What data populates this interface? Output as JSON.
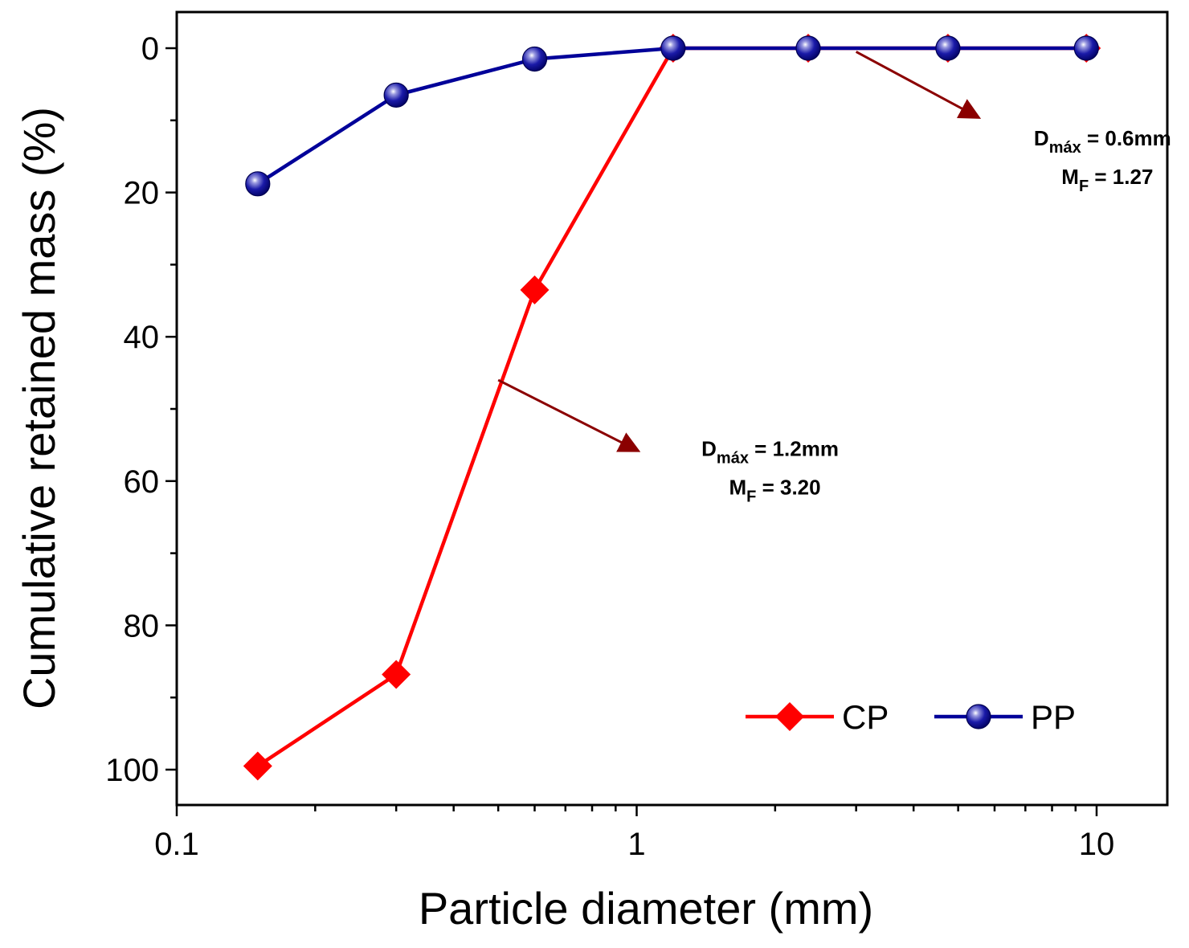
{
  "chart_data": {
    "type": "line",
    "title": "",
    "xlabel": "Particle diameter (mm)",
    "ylabel": "Cumulative retained mass (%)",
    "x_scale": "log",
    "xlim": [
      0.1,
      15
    ],
    "ylim": [
      105,
      -5
    ],
    "y_inverted": true,
    "x_ticks": [
      {
        "value": 0.1,
        "label": "0.1"
      },
      {
        "value": 1,
        "label": "1"
      },
      {
        "value": 10,
        "label": "10"
      }
    ],
    "y_ticks": [
      {
        "value": 0,
        "label": "0"
      },
      {
        "value": 20,
        "label": "20"
      },
      {
        "value": 40,
        "label": "40"
      },
      {
        "value": 60,
        "label": "60"
      },
      {
        "value": 80,
        "label": "80"
      },
      {
        "value": 100,
        "label": "100"
      }
    ],
    "series": [
      {
        "name": "CP",
        "color": "#ff0000",
        "marker": "diamond",
        "x": [
          0.15,
          0.3,
          0.6,
          1.2,
          2.36,
          4.75,
          9.5
        ],
        "y": [
          99.5,
          86.8,
          33.5,
          0,
          0,
          0,
          0
        ]
      },
      {
        "name": "PP",
        "color": "#000099",
        "marker": "sphere",
        "x": [
          0.15,
          0.3,
          0.6,
          1.2,
          2.36,
          4.75,
          9.5
        ],
        "y": [
          18.8,
          6.5,
          1.5,
          0,
          0,
          0,
          0
        ]
      }
    ],
    "legend": {
      "position": "bottom-right",
      "entries": [
        "CP",
        "PP"
      ]
    },
    "annotations": [
      {
        "id": "pp",
        "line1_main": "D",
        "line1_sub": "máx",
        "line1_rest": " = 0.6mm",
        "line2_main": "M",
        "line2_sub": "F",
        "line2_rest": " = 1.27",
        "arrow_from": [
          3.0,
          0.5
        ],
        "arrow_to": [
          5.5,
          9.5
        ],
        "text_at": [
          10.3,
          13.5
        ],
        "color": "#8b0000"
      },
      {
        "id": "cp",
        "line1_main": "D",
        "line1_sub": "máx",
        "line1_rest": " = 1.2mm",
        "line2_main": "M",
        "line2_sub": "F",
        "line2_rest": " = 3.20",
        "arrow_from": [
          0.5,
          46.0
        ],
        "arrow_to": [
          1.0,
          55.7
        ],
        "text_at": [
          1.95,
          56.5
        ],
        "color": "#8b0000"
      }
    ]
  }
}
